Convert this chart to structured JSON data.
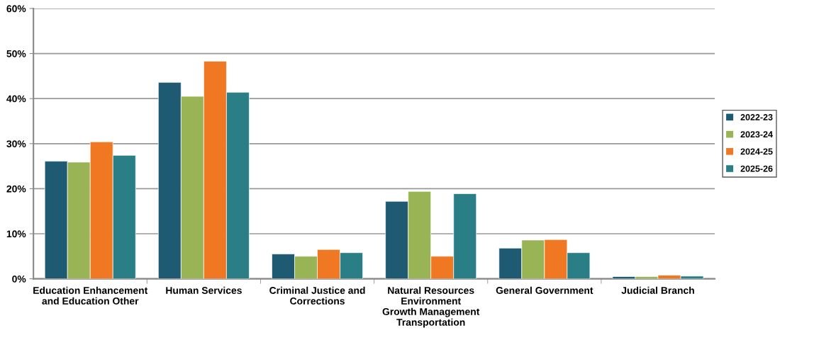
{
  "chart_data": {
    "type": "bar",
    "categories": [
      "Education Enhancement\nand Education Other",
      "Human Services",
      "Criminal Justice and\nCorrections",
      "Natural Resources\nEnvironment\nGrowth Management\nTransportation",
      "General Government",
      "Judicial Branch"
    ],
    "series": [
      {
        "name": "2022-23",
        "color": "#1f5a73",
        "values": [
          26.1,
          43.6,
          5.5,
          17.2,
          6.8,
          0.5
        ]
      },
      {
        "name": "2023-24",
        "color": "#99b454",
        "values": [
          25.9,
          40.5,
          5.0,
          19.4,
          8.6,
          0.5
        ]
      },
      {
        "name": "2024-25",
        "color": "#f07822",
        "values": [
          30.4,
          48.3,
          6.5,
          5.0,
          8.7,
          0.8
        ]
      },
      {
        "name": "2025-26",
        "color": "#2a7f86",
        "values": [
          27.4,
          41.4,
          5.8,
          18.9,
          5.8,
          0.6
        ]
      }
    ],
    "ylim": [
      0,
      60
    ],
    "yticks": [
      {
        "value": 0,
        "label": "0%"
      },
      {
        "value": 10,
        "label": "10%"
      },
      {
        "value": 20,
        "label": "20%"
      },
      {
        "value": 30,
        "label": "30%"
      },
      {
        "value": 40,
        "label": "40%"
      },
      {
        "value": 50,
        "label": "50%"
      },
      {
        "value": 60,
        "label": "60%"
      }
    ],
    "grid": "y",
    "legend": "right"
  }
}
